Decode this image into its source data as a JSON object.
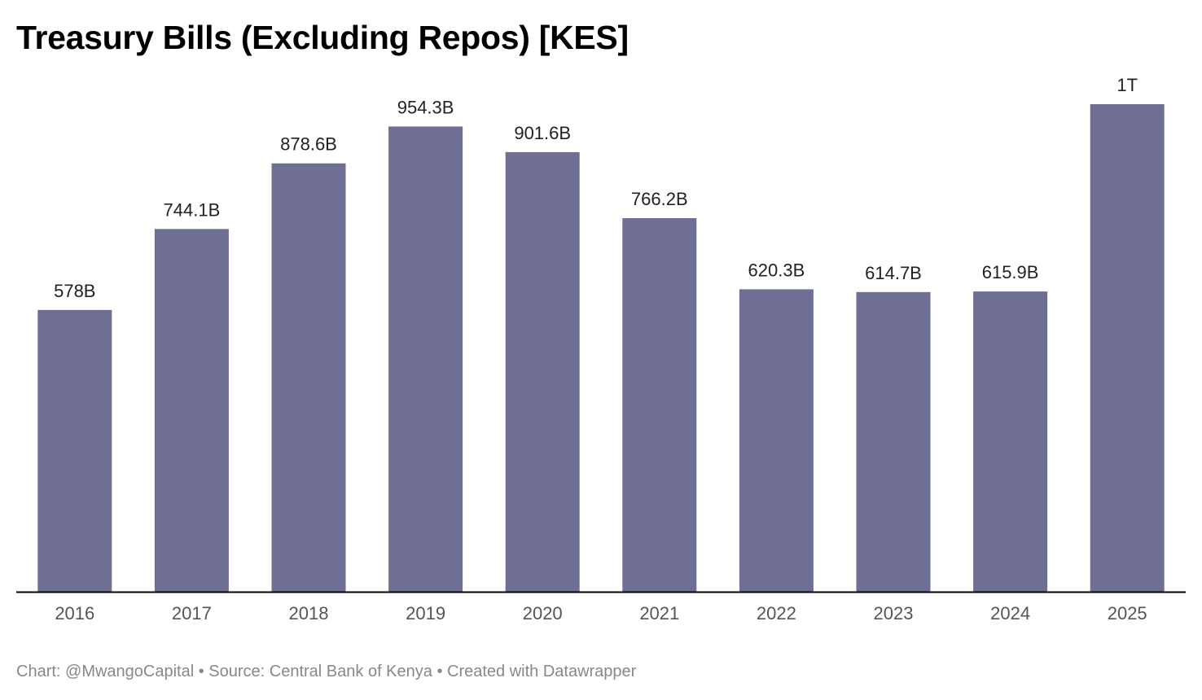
{
  "chart_data": {
    "type": "bar",
    "title": "Treasury Bills (Excluding Repos) [KES]",
    "categories": [
      "2016",
      "2017",
      "2018",
      "2019",
      "2020",
      "2021",
      "2022",
      "2023",
      "2024",
      "2025"
    ],
    "values": [
      578,
      744.1,
      878.6,
      954.3,
      901.6,
      766.2,
      620.3,
      614.7,
      615.9,
      1000
    ],
    "value_labels": [
      "578B",
      "744.1B",
      "878.6B",
      "954.3B",
      "901.6B",
      "766.2B",
      "620.3B",
      "614.7B",
      "615.9B",
      "1T"
    ],
    "unit": "B",
    "ylim": [
      0,
      1000
    ],
    "grid": false,
    "legend": "none",
    "bar_color": "#6f6f96",
    "axis_color": "#000000"
  },
  "footer": {
    "text": "Chart: @MwangoCapital • Source: Central Bank of Kenya • Created with Datawrapper"
  }
}
